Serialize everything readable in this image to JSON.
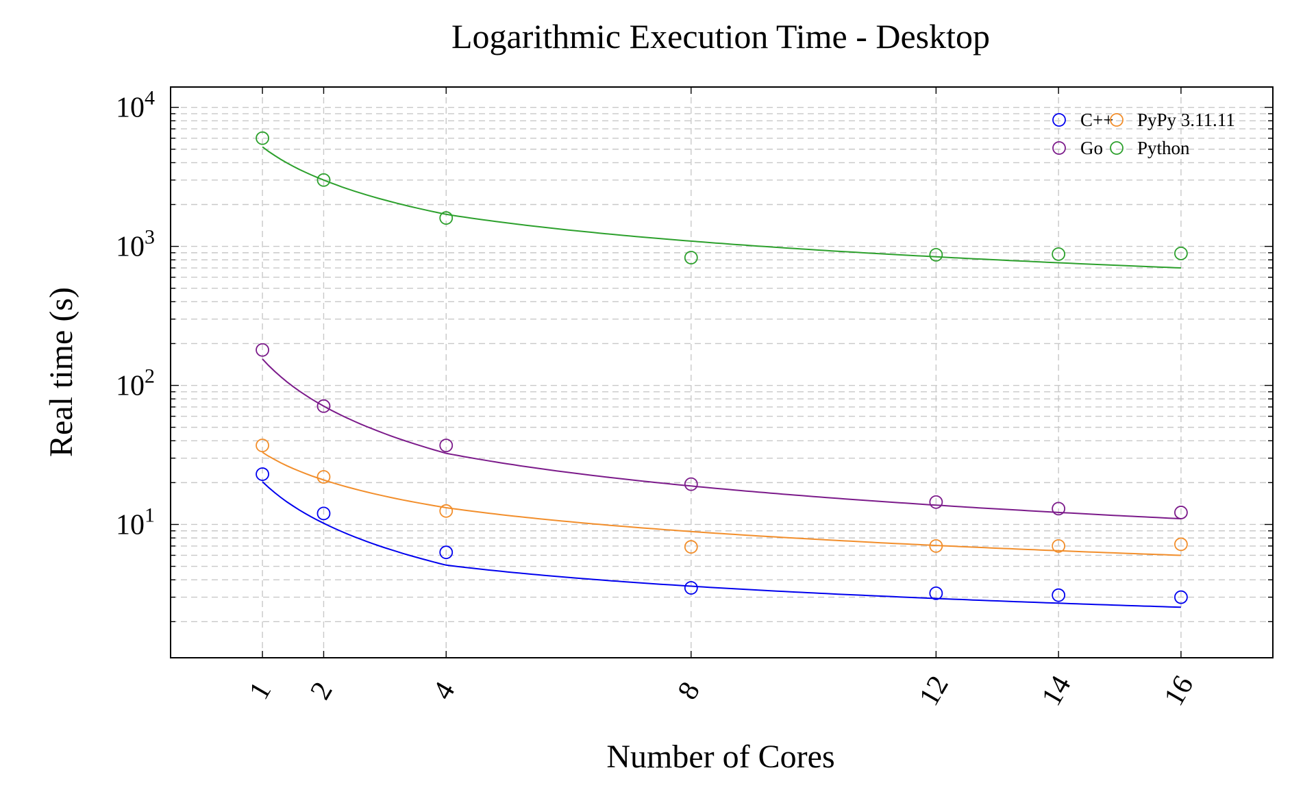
{
  "chart_data": {
    "type": "scatter",
    "title": "Logarithmic Execution Time - Desktop",
    "xlabel": "Number of Cores",
    "ylabel": "Real time (s)",
    "x": [
      1,
      2,
      4,
      8,
      12,
      14,
      16
    ],
    "xlim": [
      -0.5,
      17.5
    ],
    "y_scale": "log",
    "ylim": [
      1.1,
      14000
    ],
    "y_ticks": [
      {
        "value": 10,
        "base": "10",
        "exp": "1"
      },
      {
        "value": 100,
        "base": "10",
        "exp": "2"
      },
      {
        "value": 1000,
        "base": "10",
        "exp": "3"
      },
      {
        "value": 10000,
        "base": "10",
        "exp": "4"
      }
    ],
    "grid": true,
    "legend_position": "top-right",
    "series": [
      {
        "name": "C++",
        "color": "#0000ee",
        "values": [
          23,
          12,
          6.3,
          3.5,
          3.2,
          3.1,
          3.0
        ],
        "fit": [
          20.3,
          10.2,
          5.1,
          2.54
        ]
      },
      {
        "name": "PyPy 3.11.11",
        "color": "#f28e2b",
        "values": [
          37,
          22,
          12.5,
          6.9,
          7.0,
          7.0,
          7.2
        ],
        "fit": [
          33,
          20.9,
          13.2,
          6.0
        ]
      },
      {
        "name": "Go",
        "color": "#7b1a8a",
        "values": [
          180,
          71,
          37,
          19.5,
          14.5,
          13,
          12.2
        ],
        "fit": [
          155,
          71,
          32.5,
          11
        ]
      },
      {
        "name": "Python",
        "color": "#2ca02c",
        "values": [
          6000,
          3000,
          1600,
          830,
          870,
          880,
          890
        ],
        "fit": [
          5200,
          3000,
          1700,
          700
        ]
      }
    ]
  }
}
